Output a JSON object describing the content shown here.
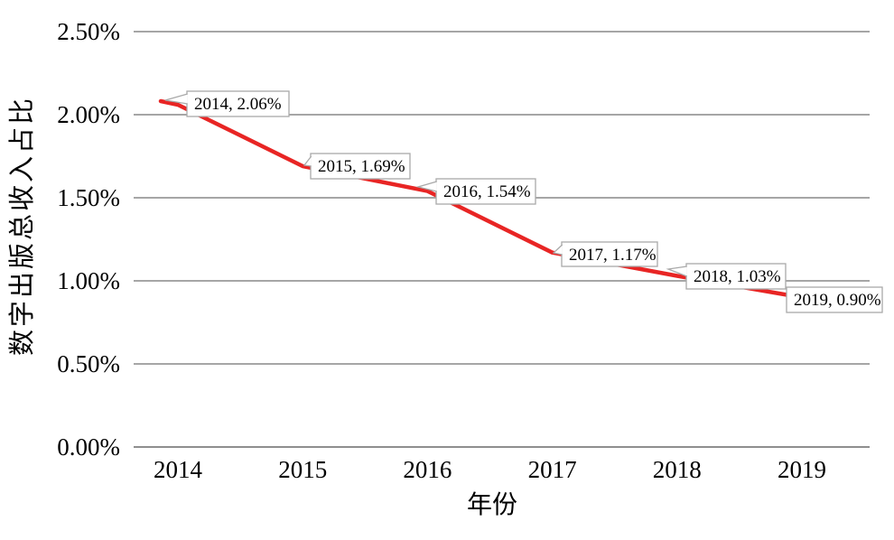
{
  "chart_data": {
    "type": "line",
    "title": "",
    "xlabel": "年份",
    "ylabel": "数字出版总收入占比",
    "categories": [
      "2014",
      "2015",
      "2016",
      "2017",
      "2018",
      "2019"
    ],
    "series": [
      {
        "name": "数字出版总收入占比",
        "values": [
          2.06,
          1.69,
          1.54,
          1.17,
          1.03,
          0.9
        ]
      }
    ],
    "point_labels": [
      "2014, 2.06%",
      "2015, 1.69%",
      "2016, 1.54%",
      "2017, 1.17%",
      "2018, 1.03%",
      "2019, 0.90%"
    ],
    "yticks": [
      "0.00%",
      "0.50%",
      "1.00%",
      "1.50%",
      "2.00%",
      "2.50%"
    ],
    "ytick_values": [
      0,
      0.5,
      1.0,
      1.5,
      2.0,
      2.5
    ],
    "ylim": [
      0,
      2.5
    ],
    "grid": true,
    "legend": "none",
    "colors": {
      "line": "#e82524",
      "gridline": "#a6a6a6",
      "axis_line": "#8f8f8f",
      "callout_border": "#a9a9a9",
      "callout_fill": "#ffffff",
      "text": "#000000"
    }
  }
}
